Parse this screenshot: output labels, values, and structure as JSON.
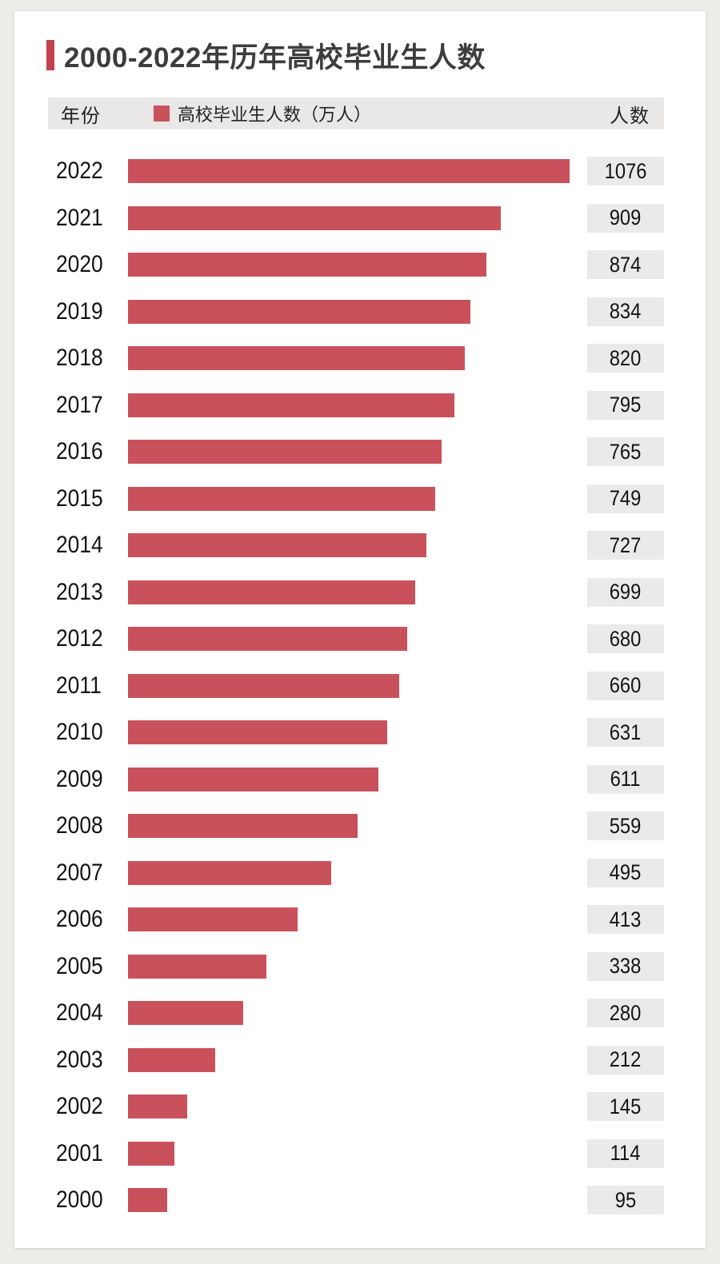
{
  "page": {
    "background_color": "#eeece9",
    "card_background_color": "#ffffff"
  },
  "header": {
    "title": "2000-2022年历年高校毕业生人数",
    "accent_bar_color": "#c2424e"
  },
  "legend": {
    "year_column_label": "年份",
    "series_label": "高校毕业生人数（万人）",
    "value_column_label": "人数",
    "strip_background_color": "#e9e8e7",
    "swatch_color": "#c9515c"
  },
  "chart_data": {
    "type": "bar",
    "orientation": "horizontal",
    "title": "2000-2022年历年高校毕业生人数",
    "series_name": "高校毕业生人数（万人）",
    "categories": [
      "2022",
      "2021",
      "2020",
      "2019",
      "2018",
      "2017",
      "2016",
      "2015",
      "2014",
      "2013",
      "2012",
      "2011",
      "2010",
      "2009",
      "2008",
      "2007",
      "2006",
      "2005",
      "2004",
      "2003",
      "2002",
      "2001",
      "2000"
    ],
    "values": [
      1076,
      909,
      874,
      834,
      820,
      795,
      765,
      749,
      727,
      699,
      680,
      660,
      631,
      611,
      559,
      495,
      413,
      338,
      280,
      212,
      145,
      114,
      95
    ],
    "xlim": [
      0,
      1076
    ],
    "grid": false,
    "legend_position": "top",
    "bar_color": "#c9515c",
    "value_box_color": "#ebeaea"
  }
}
